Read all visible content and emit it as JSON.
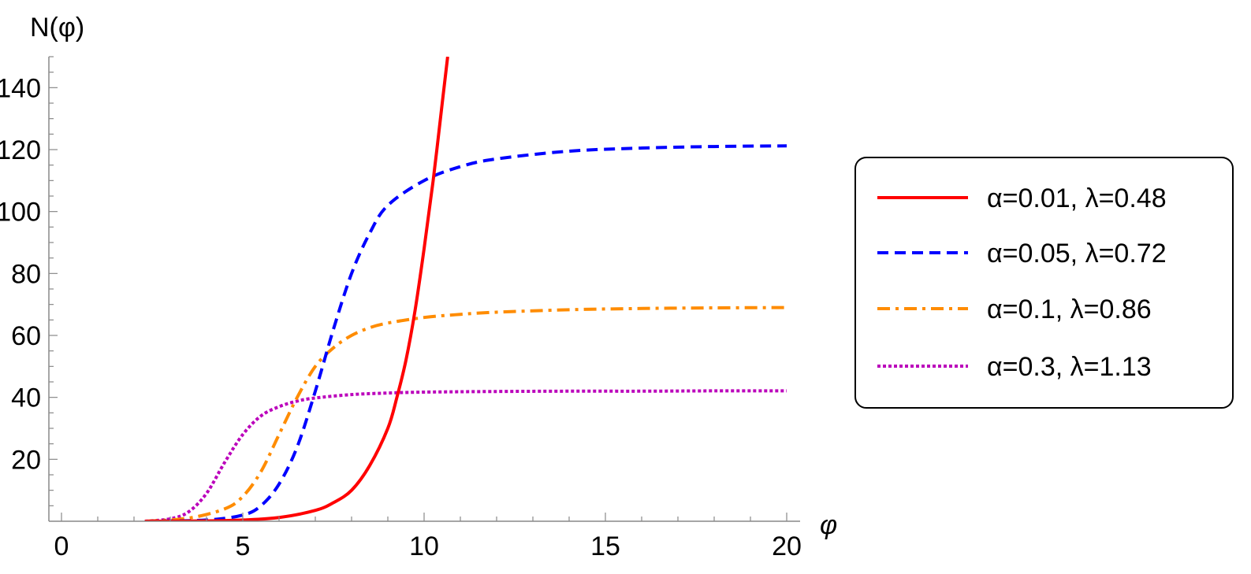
{
  "chart_data": {
    "type": "line",
    "xlabel": "φ",
    "ylabel": "N(φ)",
    "xlim": [
      0,
      20
    ],
    "ylim": [
      0,
      150
    ],
    "x_ticks": [
      "0",
      "5",
      "10",
      "15",
      "20"
    ],
    "y_ticks": [
      "20",
      "40",
      "60",
      "80",
      "100",
      "120",
      "140"
    ],
    "grid": false,
    "legend_position": "right",
    "series": [
      {
        "name": "α=0.01, λ=0.48",
        "color": "#ff0000",
        "dash": "solid",
        "x": [
          2.3,
          4,
          5,
          6,
          7,
          7.5,
          8,
          8.5,
          9,
          9.25,
          9.5,
          9.75,
          10,
          10.25,
          10.5,
          10.65
        ],
        "y": [
          0,
          0.1,
          0.4,
          1.2,
          3.5,
          6,
          10,
          18,
          30,
          40,
          52,
          68,
          88,
          110,
          135,
          150
        ]
      },
      {
        "name": "α=0.05, λ=0.72",
        "color": "#0000ff",
        "dash": "dashed",
        "x": [
          2.3,
          4,
          5,
          5.5,
          6,
          6.5,
          7,
          7.5,
          8,
          8.5,
          9,
          10,
          11,
          12,
          14,
          16,
          18,
          20
        ],
        "y": [
          0,
          0.4,
          2,
          5,
          12,
          24,
          42,
          62,
          80,
          93,
          102,
          110,
          114.5,
          117,
          119.5,
          120.5,
          121,
          121.2
        ]
      },
      {
        "name": "α=0.1, λ=0.86",
        "color": "#ff8c00",
        "dash": "dashdot",
        "x": [
          2.3,
          3.5,
          4.5,
          5,
          5.5,
          6,
          6.5,
          7,
          7.5,
          8,
          8.5,
          9,
          10,
          11,
          12,
          14,
          16,
          18,
          20
        ],
        "y": [
          0,
          1,
          4,
          8,
          16,
          28,
          40,
          50,
          56,
          60,
          62.5,
          64,
          65.8,
          66.8,
          67.5,
          68.3,
          68.7,
          68.9,
          69
        ]
      },
      {
        "name": "α=0.3, λ=1.13",
        "color": "#bb00bb",
        "dash": "dotted",
        "x": [
          2.3,
          3,
          3.5,
          4,
          4.5,
          5,
          5.5,
          6,
          6.5,
          7,
          8,
          9,
          10,
          12,
          14,
          16,
          18,
          20
        ],
        "y": [
          0,
          0.8,
          3,
          9,
          19,
          28,
          34,
          37,
          38.8,
          39.8,
          40.9,
          41.4,
          41.7,
          41.9,
          42,
          42,
          42.1,
          42.1
        ]
      }
    ]
  }
}
